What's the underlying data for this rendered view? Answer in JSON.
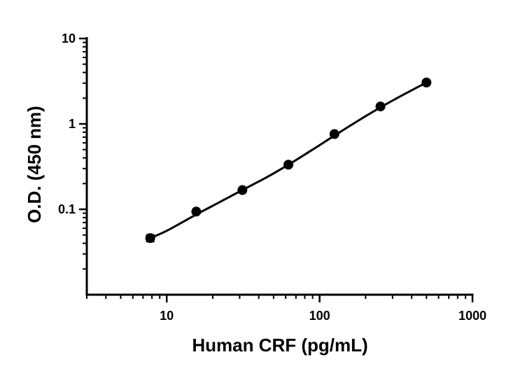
{
  "chart_data": {
    "type": "scatter",
    "xlabel": "Human CRF (pg/mL)",
    "ylabel": "O.D. (450 nm)",
    "x_scale": "log",
    "y_scale": "log",
    "xlim": [
      3,
      1000
    ],
    "ylim": [
      0.01,
      10
    ],
    "x_ticks": [
      {
        "value": 10,
        "label": "10"
      },
      {
        "value": 100,
        "label": "100"
      },
      {
        "value": 1000,
        "label": "1000"
      }
    ],
    "y_ticks": [
      {
        "value": 0.1,
        "label": "0.1"
      },
      {
        "value": 1,
        "label": "1"
      },
      {
        "value": 10,
        "label": "10"
      }
    ],
    "grid": false,
    "legend": "none",
    "series": [
      {
        "x": [
          7.8,
          15.6,
          31.25,
          62.5,
          125,
          250,
          500
        ],
        "y": [
          0.046,
          0.094,
          0.168,
          0.333,
          0.76,
          1.6,
          3.05
        ],
        "error_low": [
          0.042,
          0.094,
          0.168,
          0.333,
          0.76,
          1.6,
          3.05
        ],
        "error_high": [
          0.05,
          0.094,
          0.168,
          0.333,
          0.76,
          1.6,
          3.05
        ]
      }
    ],
    "fit_curve": {
      "x": [
        7.8,
        10,
        15.6,
        20,
        31.25,
        45,
        62.5,
        90,
        125,
        180,
        250,
        350,
        500
      ],
      "y": [
        0.046,
        0.056,
        0.087,
        0.11,
        0.168,
        0.237,
        0.333,
        0.5,
        0.73,
        1.1,
        1.56,
        2.18,
        3.05
      ]
    },
    "colors": {
      "marks": "#000000",
      "background": "#ffffff"
    }
  }
}
